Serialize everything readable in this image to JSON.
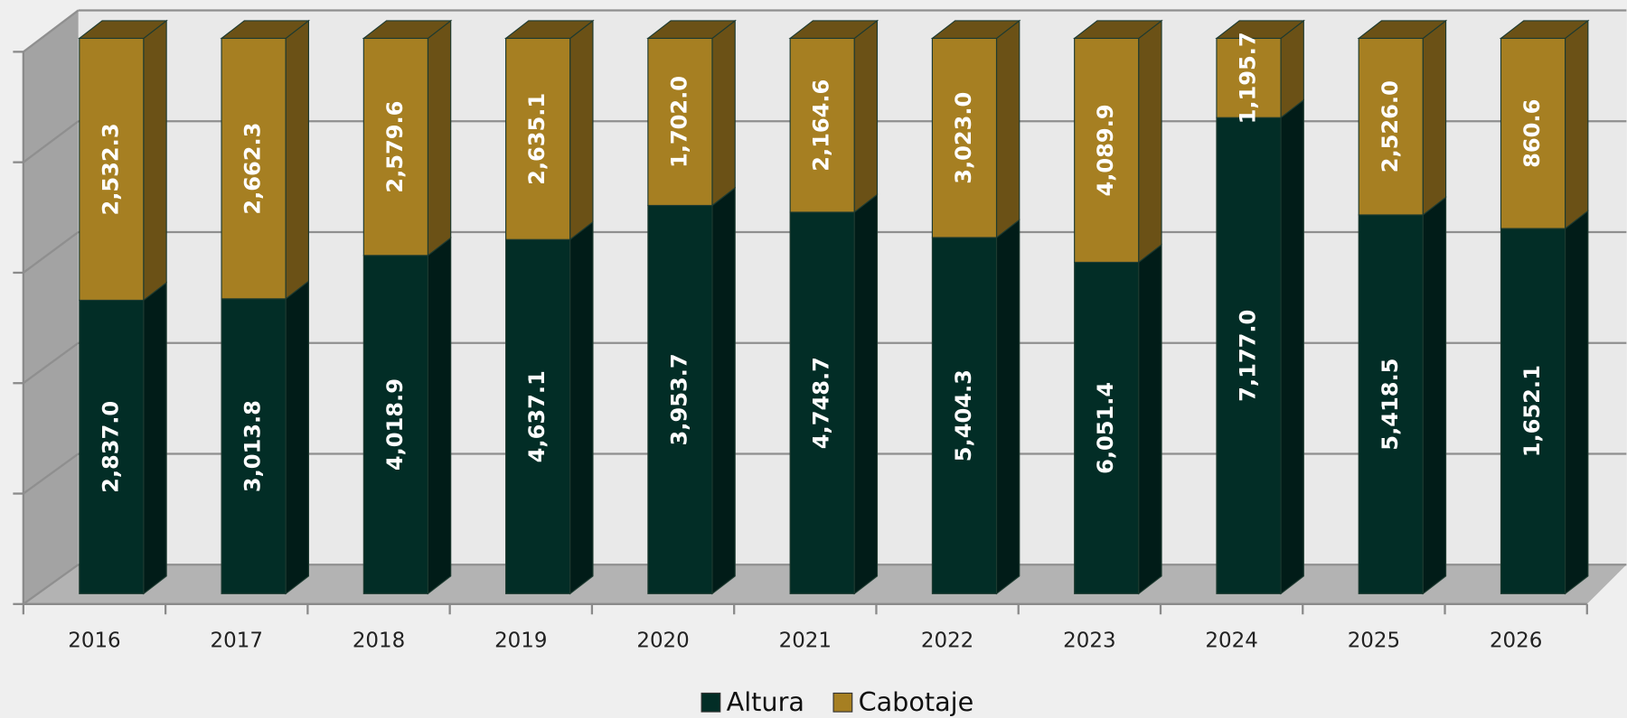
{
  "chart_data": {
    "type": "bar",
    "stacking": "percent",
    "style": "3d",
    "categories": [
      "2016",
      "2017",
      "2018",
      "2019",
      "2020",
      "2021",
      "2022",
      "2023",
      "2024",
      "2025",
      "2026"
    ],
    "series": [
      {
        "name": "Altura",
        "color": "#022d26",
        "side_color": "#011c18",
        "values": [
          2837.0,
          3013.8,
          4018.9,
          4637.1,
          3953.7,
          4748.7,
          5404.3,
          6051.4,
          7177.0,
          5418.5,
          1652.1
        ],
        "value_labels": [
          "2,837.0",
          "3,013.8",
          "4,018.9",
          "4,637.1",
          "3,953.7",
          "4,748.7",
          "5,404.3",
          "6,051.4",
          "7,177.0",
          "5,418.5",
          "1,652.1"
        ]
      },
      {
        "name": "Cabotaje",
        "color": "#a67f22",
        "side_color": "#6b5116",
        "values": [
          2532.3,
          2662.3,
          2579.6,
          2635.1,
          1702.0,
          2164.6,
          3023.0,
          4089.9,
          1195.7,
          2526.0,
          860.6
        ],
        "value_labels": [
          "2,532.3",
          "2,662.3",
          "2,579.6",
          "2,635.1",
          "1,702.0",
          "2,164.6",
          "3,023.0",
          "4,089.9",
          "1,195.7",
          "2,526.0",
          "860.6"
        ]
      }
    ],
    "ylim": [
      0,
      100
    ],
    "yticks": [
      0,
      20,
      40,
      60,
      80,
      100
    ],
    "grid": true,
    "legend": "bottom"
  }
}
